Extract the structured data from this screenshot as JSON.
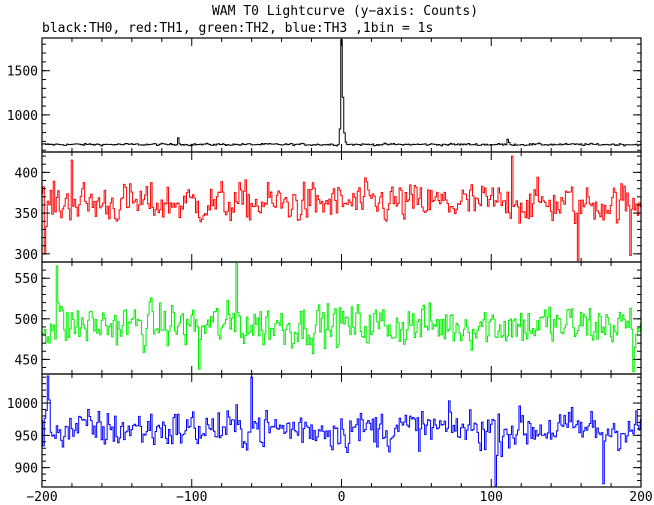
{
  "title": "WAM T0 Lightcurve (y−axis: Counts)",
  "subtitle": "black:TH0, red:TH1, green:TH2, blue:TH3 ,1bin = 1s",
  "chart_data": {
    "type": "line",
    "x_range": [
      -200,
      200
    ],
    "x_ticks": [
      -200,
      -100,
      0,
      100,
      200
    ],
    "x_tick_labels": [
      "−200",
      "−100",
      "0",
      "100",
      "200"
    ],
    "panels": [
      {
        "name": "TH0",
        "color": "#000000",
        "ylim": [
          580,
          1870
        ],
        "y_ticks": [
          1000,
          1500
        ],
        "y_tick_labels": [
          "1000",
          "1500"
        ],
        "baseline": 665,
        "noise": 10,
        "features": [
          {
            "x": 0,
            "y": 1850
          },
          {
            "x": 1,
            "y": 1200
          },
          {
            "x": -1,
            "y": 840
          },
          {
            "x": -109,
            "y": 740
          },
          {
            "x": 111,
            "y": 725
          }
        ]
      },
      {
        "name": "TH1",
        "color": "#ff0000",
        "ylim": [
          290,
          425
        ],
        "y_ticks": [
          300,
          350,
          400
        ],
        "y_tick_labels": [
          "300",
          "350",
          "400"
        ],
        "baseline": 362,
        "noise": 20,
        "features": [
          {
            "x": 158,
            "y": 292
          },
          {
            "x": 193,
            "y": 298
          },
          {
            "x": -198,
            "y": 300
          },
          {
            "x": 114,
            "y": 420
          },
          {
            "x": -180,
            "y": 415
          }
        ]
      },
      {
        "name": "TH2",
        "color": "#00ee00",
        "ylim": [
          432,
          570
        ],
        "y_ticks": [
          450,
          500,
          550
        ],
        "y_tick_labels": [
          "450",
          "500",
          "550"
        ],
        "baseline": 492,
        "noise": 22,
        "features": [
          {
            "x": -190,
            "y": 565
          },
          {
            "x": -70,
            "y": 568
          },
          {
            "x": 195,
            "y": 435
          },
          {
            "x": -95,
            "y": 438
          }
        ]
      },
      {
        "name": "TH3",
        "color": "#0000ff",
        "ylim": [
          870,
          1045
        ],
        "y_ticks": [
          900,
          950,
          1000
        ],
        "y_tick_labels": [
          "900",
          "950",
          "1000"
        ],
        "baseline": 960,
        "noise": 25,
        "features": [
          {
            "x": -196,
            "y": 1042
          },
          {
            "x": -60,
            "y": 1040
          },
          {
            "x": 103,
            "y": 872
          },
          {
            "x": 175,
            "y": 875
          }
        ]
      }
    ]
  }
}
